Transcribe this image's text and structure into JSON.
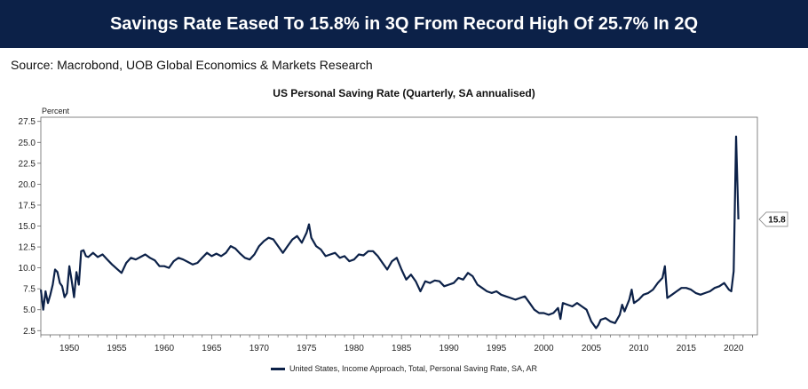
{
  "header": {
    "title": "Savings Rate Eased To 15.8% in 3Q From Record High Of 25.7% In 2Q"
  },
  "source": "Source: Macrobond, UOB Global Economics & Markets Research",
  "colors": {
    "banner": "#0c2148",
    "series": "#0c2148"
  },
  "chart_data": {
    "type": "line",
    "title": "US Personal Saving Rate (Quarterly, SA annualised)",
    "ylabel": "Percent",
    "xlabel": "",
    "xlim": [
      1947,
      2022.5
    ],
    "ylim": [
      2.0,
      28.0
    ],
    "yticks": [
      "2.5",
      "5.0",
      "7.5",
      "10.0",
      "12.5",
      "15.0",
      "17.5",
      "20.0",
      "22.5",
      "25.0",
      "27.5"
    ],
    "xticks": [
      "1950",
      "1955",
      "1960",
      "1965",
      "1970",
      "1975",
      "1980",
      "1985",
      "1990",
      "1995",
      "2000",
      "2005",
      "2010",
      "2015",
      "2020"
    ],
    "grid": false,
    "legend_position": "bottom",
    "last_value_label": "15.8",
    "series": [
      {
        "name": "United States, Income Approach, Total, Personal Saving Rate, SA, AR",
        "points": [
          [
            1947.0,
            7.4
          ],
          [
            1947.25,
            5.0
          ],
          [
            1947.5,
            7.2
          ],
          [
            1947.75,
            5.8
          ],
          [
            1948.0,
            6.8
          ],
          [
            1948.25,
            8.0
          ],
          [
            1948.5,
            9.8
          ],
          [
            1948.75,
            9.5
          ],
          [
            1949.0,
            8.2
          ],
          [
            1949.25,
            7.8
          ],
          [
            1949.5,
            6.5
          ],
          [
            1949.75,
            7.0
          ],
          [
            1950.0,
            10.2
          ],
          [
            1950.25,
            8.5
          ],
          [
            1950.5,
            6.5
          ],
          [
            1950.75,
            9.5
          ],
          [
            1951.0,
            8.0
          ],
          [
            1951.25,
            12.0
          ],
          [
            1951.5,
            12.1
          ],
          [
            1951.75,
            11.4
          ],
          [
            1952.0,
            11.3
          ],
          [
            1952.5,
            11.8
          ],
          [
            1953.0,
            11.3
          ],
          [
            1953.5,
            11.6
          ],
          [
            1954.0,
            11.0
          ],
          [
            1954.5,
            10.4
          ],
          [
            1955.0,
            9.9
          ],
          [
            1955.5,
            9.4
          ],
          [
            1956.0,
            10.6
          ],
          [
            1956.5,
            11.2
          ],
          [
            1957.0,
            11.0
          ],
          [
            1957.5,
            11.3
          ],
          [
            1958.0,
            11.6
          ],
          [
            1958.5,
            11.2
          ],
          [
            1959.0,
            10.9
          ],
          [
            1959.5,
            10.2
          ],
          [
            1960.0,
            10.2
          ],
          [
            1960.5,
            10.0
          ],
          [
            1961.0,
            10.8
          ],
          [
            1961.5,
            11.2
          ],
          [
            1962.0,
            11.0
          ],
          [
            1962.5,
            10.7
          ],
          [
            1963.0,
            10.4
          ],
          [
            1963.5,
            10.6
          ],
          [
            1964.0,
            11.2
          ],
          [
            1964.5,
            11.8
          ],
          [
            1965.0,
            11.4
          ],
          [
            1965.5,
            11.7
          ],
          [
            1966.0,
            11.4
          ],
          [
            1966.5,
            11.8
          ],
          [
            1967.0,
            12.6
          ],
          [
            1967.5,
            12.3
          ],
          [
            1968.0,
            11.7
          ],
          [
            1968.5,
            11.2
          ],
          [
            1969.0,
            11.0
          ],
          [
            1969.5,
            11.6
          ],
          [
            1970.0,
            12.6
          ],
          [
            1970.5,
            13.2
          ],
          [
            1971.0,
            13.6
          ],
          [
            1971.5,
            13.4
          ],
          [
            1972.0,
            12.6
          ],
          [
            1972.5,
            11.8
          ],
          [
            1973.0,
            12.6
          ],
          [
            1973.5,
            13.4
          ],
          [
            1974.0,
            13.8
          ],
          [
            1974.5,
            13.0
          ],
          [
            1975.0,
            14.2
          ],
          [
            1975.25,
            15.2
          ],
          [
            1975.5,
            13.6
          ],
          [
            1976.0,
            12.6
          ],
          [
            1976.5,
            12.2
          ],
          [
            1977.0,
            11.4
          ],
          [
            1977.5,
            11.6
          ],
          [
            1978.0,
            11.8
          ],
          [
            1978.5,
            11.2
          ],
          [
            1979.0,
            11.4
          ],
          [
            1979.5,
            10.8
          ],
          [
            1980.0,
            11.0
          ],
          [
            1980.5,
            11.6
          ],
          [
            1981.0,
            11.5
          ],
          [
            1981.5,
            12.0
          ],
          [
            1982.0,
            12.0
          ],
          [
            1982.5,
            11.4
          ],
          [
            1983.0,
            10.6
          ],
          [
            1983.5,
            9.8
          ],
          [
            1984.0,
            10.8
          ],
          [
            1984.5,
            11.2
          ],
          [
            1985.0,
            9.8
          ],
          [
            1985.5,
            8.6
          ],
          [
            1986.0,
            9.2
          ],
          [
            1986.5,
            8.4
          ],
          [
            1987.0,
            7.2
          ],
          [
            1987.5,
            8.4
          ],
          [
            1988.0,
            8.2
          ],
          [
            1988.5,
            8.5
          ],
          [
            1989.0,
            8.4
          ],
          [
            1989.5,
            7.8
          ],
          [
            1990.0,
            8.0
          ],
          [
            1990.5,
            8.2
          ],
          [
            1991.0,
            8.8
          ],
          [
            1991.5,
            8.6
          ],
          [
            1992.0,
            9.4
          ],
          [
            1992.5,
            9.0
          ],
          [
            1993.0,
            8.0
          ],
          [
            1993.5,
            7.6
          ],
          [
            1994.0,
            7.2
          ],
          [
            1994.5,
            7.0
          ],
          [
            1995.0,
            7.2
          ],
          [
            1995.5,
            6.8
          ],
          [
            1996.0,
            6.6
          ],
          [
            1996.5,
            6.4
          ],
          [
            1997.0,
            6.2
          ],
          [
            1997.5,
            6.4
          ],
          [
            1998.0,
            6.6
          ],
          [
            1998.5,
            5.8
          ],
          [
            1999.0,
            5.0
          ],
          [
            1999.5,
            4.6
          ],
          [
            2000.0,
            4.6
          ],
          [
            2000.5,
            4.4
          ],
          [
            2001.0,
            4.6
          ],
          [
            2001.5,
            5.2
          ],
          [
            2001.75,
            3.9
          ],
          [
            2002.0,
            5.8
          ],
          [
            2002.5,
            5.6
          ],
          [
            2003.0,
            5.4
          ],
          [
            2003.5,
            5.8
          ],
          [
            2004.0,
            5.4
          ],
          [
            2004.5,
            5.0
          ],
          [
            2005.0,
            3.6
          ],
          [
            2005.5,
            2.8
          ],
          [
            2005.75,
            3.2
          ],
          [
            2006.0,
            3.8
          ],
          [
            2006.5,
            4.0
          ],
          [
            2007.0,
            3.6
          ],
          [
            2007.5,
            3.4
          ],
          [
            2008.0,
            4.4
          ],
          [
            2008.25,
            5.6
          ],
          [
            2008.5,
            4.8
          ],
          [
            2009.0,
            6.2
          ],
          [
            2009.25,
            7.4
          ],
          [
            2009.5,
            5.8
          ],
          [
            2010.0,
            6.2
          ],
          [
            2010.5,
            6.8
          ],
          [
            2011.0,
            7.0
          ],
          [
            2011.5,
            7.4
          ],
          [
            2012.0,
            8.2
          ],
          [
            2012.5,
            8.8
          ],
          [
            2012.75,
            10.2
          ],
          [
            2013.0,
            6.4
          ],
          [
            2013.5,
            6.8
          ],
          [
            2014.0,
            7.2
          ],
          [
            2014.5,
            7.6
          ],
          [
            2015.0,
            7.6
          ],
          [
            2015.5,
            7.4
          ],
          [
            2016.0,
            7.0
          ],
          [
            2016.5,
            6.8
          ],
          [
            2017.0,
            7.0
          ],
          [
            2017.5,
            7.2
          ],
          [
            2018.0,
            7.6
          ],
          [
            2018.5,
            7.8
          ],
          [
            2019.0,
            8.2
          ],
          [
            2019.5,
            7.4
          ],
          [
            2019.75,
            7.2
          ],
          [
            2020.0,
            9.6
          ],
          [
            2020.25,
            25.7
          ],
          [
            2020.5,
            15.8
          ]
        ]
      }
    ]
  }
}
